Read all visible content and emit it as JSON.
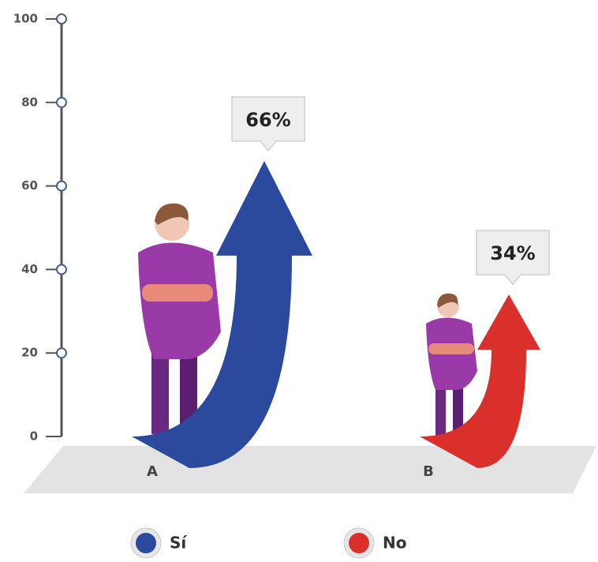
{
  "chart_data": {
    "type": "bar",
    "categories": [
      "A",
      "B"
    ],
    "series": [
      {
        "name": "Sí",
        "color": "#2b4a9e",
        "values": [
          66,
          null
        ],
        "value_labels": [
          "66%",
          null
        ]
      },
      {
        "name": "No",
        "color": "#d9302c",
        "values": [
          null,
          34
        ],
        "value_labels": [
          null,
          "34%"
        ]
      }
    ],
    "ylim": [
      0,
      100
    ],
    "yticks": [
      0,
      20,
      40,
      60,
      80,
      100
    ]
  }
}
